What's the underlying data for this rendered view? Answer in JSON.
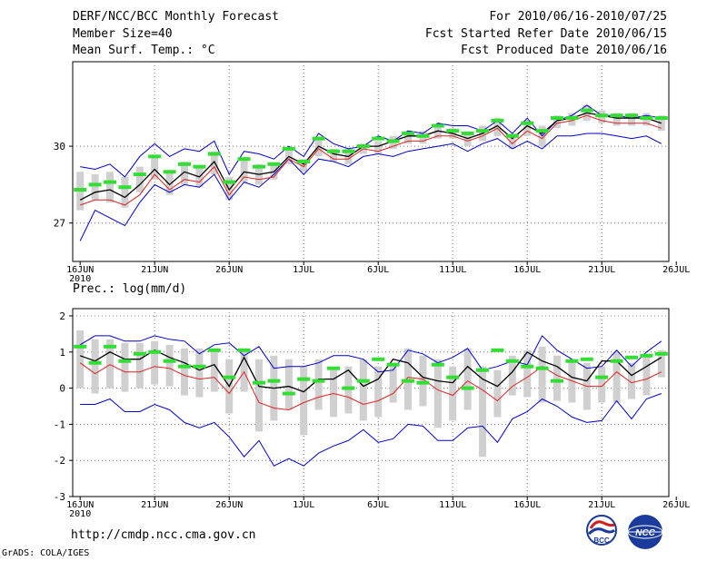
{
  "header": {
    "title": "DERF/NCC/BCC Monthly Forecast",
    "member_size": "Member Size=40",
    "variable": "Mean Surf. Temp.: °C",
    "period": "For 2010/06/16-2010/07/25",
    "refer_date": "Fcst Started Refer Date 2010/06/15",
    "produced_date": "Fcst Produced Date 2010/06/16"
  },
  "footer": {
    "url": "http://cmdp.ncc.cma.gov.cn",
    "grads": "GrADS: COLA/IGES",
    "logo_left": "BCC",
    "logo_right": "NCC"
  },
  "colors": {
    "box": "#d0d0d0",
    "hit": "#33dd33",
    "max": "#0000cc",
    "min": "#0000cc",
    "mean": "#dd2222",
    "median": "#000000"
  },
  "chart_data": [
    {
      "type": "line",
      "title": "Mean Surf. Temp.: °C",
      "x_ticks": [
        "16JUN",
        "21JUN",
        "26JUN",
        "1JUL",
        "6JUL",
        "11JUL",
        "16JUL",
        "21JUL",
        "26JUL"
      ],
      "x_year": "2010",
      "y_ticks": [
        27,
        30
      ],
      "ylim": [
        25.5,
        33.3
      ],
      "series": [
        {
          "name": "max",
          "values": [
            29.2,
            29.1,
            29.3,
            28.8,
            29.6,
            30.1,
            29.6,
            29.9,
            29.8,
            30.2,
            28.9,
            29.8,
            29.7,
            29.5,
            30.0,
            29.6,
            30.5,
            30.1,
            29.9,
            30.0,
            30.4,
            30.2,
            30.6,
            30.5,
            30.9,
            30.8,
            30.8,
            30.6,
            31.0,
            30.5,
            31.1,
            30.4,
            31.0,
            31.2,
            31.6,
            31.2,
            31.2,
            31.1,
            31.2,
            31.1
          ]
        },
        {
          "name": "min",
          "values": [
            26.3,
            27.5,
            27.2,
            26.9,
            27.8,
            28.5,
            28.2,
            28.5,
            28.4,
            28.9,
            27.9,
            28.6,
            28.4,
            28.9,
            29.5,
            28.9,
            29.5,
            29.4,
            29.2,
            29.6,
            29.7,
            29.6,
            29.8,
            29.9,
            30.0,
            30.1,
            29.8,
            30.1,
            30.3,
            29.9,
            30.2,
            29.9,
            30.4,
            30.4,
            30.5,
            30.5,
            30.4,
            30.3,
            30.4,
            30.1
          ]
        },
        {
          "name": "mean",
          "values": [
            27.7,
            27.9,
            27.9,
            27.7,
            28.1,
            28.9,
            28.3,
            28.7,
            28.6,
            29.2,
            28.1,
            28.8,
            28.7,
            28.8,
            29.5,
            29.2,
            29.9,
            29.5,
            29.5,
            29.9,
            29.8,
            30.0,
            30.2,
            30.2,
            30.4,
            30.4,
            30.2,
            30.4,
            30.7,
            30.1,
            30.6,
            30.3,
            30.9,
            31.0,
            31.2,
            31.0,
            30.9,
            30.9,
            30.9,
            30.7
          ]
        },
        {
          "name": "median",
          "values": [
            27.9,
            28.2,
            28.3,
            28.0,
            28.5,
            29.1,
            28.5,
            29.0,
            28.8,
            29.4,
            28.3,
            29.0,
            28.9,
            29.0,
            29.6,
            29.3,
            30.0,
            29.7,
            29.6,
            30.0,
            30.0,
            30.2,
            30.4,
            30.4,
            30.6,
            30.5,
            30.3,
            30.5,
            30.8,
            30.3,
            30.8,
            30.5,
            31.0,
            31.1,
            31.3,
            31.2,
            31.1,
            31.1,
            31.1,
            30.9
          ]
        },
        {
          "name": "box_high",
          "values": [
            29.0,
            28.9,
            29.0,
            28.8,
            29.2,
            29.6,
            29.0,
            29.4,
            29.2,
            29.8,
            28.8,
            29.5,
            29.3,
            29.3,
            29.9,
            29.5,
            30.3,
            29.9,
            29.9,
            30.1,
            30.2,
            30.4,
            30.6,
            30.6,
            30.8,
            30.7,
            30.5,
            30.8,
            31.1,
            30.5,
            31.0,
            30.8,
            31.2,
            31.3,
            31.6,
            31.4,
            31.3,
            31.3,
            31.3,
            31.2
          ]
        },
        {
          "name": "box_low",
          "values": [
            27.5,
            27.9,
            27.8,
            27.6,
            28.2,
            28.7,
            28.1,
            28.5,
            28.4,
            28.9,
            27.9,
            28.6,
            28.5,
            28.7,
            29.3,
            29.0,
            29.6,
            29.4,
            29.3,
            29.7,
            29.7,
            29.9,
            30.1,
            30.1,
            30.3,
            30.3,
            30.0,
            30.2,
            30.4,
            29.9,
            30.4,
            30.0,
            30.7,
            30.8,
            31.0,
            30.9,
            30.8,
            30.8,
            30.8,
            30.6
          ]
        },
        {
          "name": "hits",
          "values": [
            28.3,
            28.5,
            28.6,
            28.4,
            28.9,
            29.6,
            29.0,
            29.3,
            29.2,
            29.7,
            28.6,
            29.5,
            29.2,
            29.3,
            29.9,
            29.4,
            30.3,
            29.8,
            29.8,
            30.0,
            30.3,
            30.2,
            30.5,
            30.4,
            30.8,
            30.6,
            30.5,
            30.6,
            31.0,
            30.4,
            30.9,
            30.6,
            31.1,
            31.1,
            31.4,
            31.2,
            31.2,
            31.2,
            31.1,
            31.1
          ]
        }
      ]
    },
    {
      "type": "line",
      "title": "Prec.: log(mm/d)",
      "x_ticks": [
        "16JUN",
        "21JUN",
        "26JUN",
        "1JUL",
        "6JUL",
        "11JUL",
        "16JUL",
        "21JUL",
        "26JUL"
      ],
      "x_year": "2010",
      "y_ticks": [
        -3,
        -2,
        -1,
        0,
        1,
        2
      ],
      "ylim": [
        -3.0,
        2.2
      ],
      "series": [
        {
          "name": "max",
          "values": [
            1.2,
            1.45,
            1.45,
            1.3,
            1.3,
            1.45,
            1.35,
            1.3,
            0.95,
            1.2,
            1.25,
            0.9,
            1.15,
            0.55,
            0.6,
            0.6,
            0.7,
            0.9,
            0.9,
            0.8,
            0.45,
            0.5,
            1.05,
            0.95,
            0.7,
            0.85,
            1.1,
            0.5,
            0.6,
            0.75,
            0.65,
            1.45,
            1.05,
            0.8,
            0.55,
            0.6,
            1.05,
            0.6,
            1.0,
            1.3
          ]
        },
        {
          "name": "min",
          "values": [
            -0.45,
            -0.45,
            -0.3,
            -0.65,
            -0.65,
            -0.45,
            -0.6,
            -0.95,
            -1.1,
            -0.95,
            -1.35,
            -1.9,
            -1.45,
            -2.15,
            -1.95,
            -2.15,
            -1.8,
            -1.6,
            -1.45,
            -1.15,
            -1.5,
            -1.4,
            -1.0,
            -1.05,
            -1.45,
            -1.45,
            -1.1,
            -1.05,
            -1.5,
            -0.85,
            -0.65,
            -0.3,
            -0.5,
            -0.8,
            -0.95,
            -0.9,
            -0.35,
            -0.85,
            -0.3,
            -0.15
          ]
        },
        {
          "name": "mean",
          "values": [
            0.7,
            0.4,
            0.65,
            0.45,
            0.45,
            0.6,
            0.55,
            0.35,
            0.25,
            0.3,
            -0.15,
            0.45,
            -0.4,
            -0.55,
            -0.6,
            -0.4,
            -0.25,
            -0.15,
            -0.25,
            -0.45,
            -0.35,
            -0.15,
            0.3,
            0.25,
            -0.05,
            -0.2,
            0.2,
            -0.05,
            -0.35,
            0.05,
            0.3,
            0.6,
            0.35,
            0.2,
            0.05,
            0.05,
            0.45,
            0.15,
            0.25,
            0.45
          ]
        },
        {
          "name": "median",
          "values": [
            0.9,
            0.75,
            1.0,
            0.8,
            0.8,
            1.05,
            0.85,
            0.7,
            0.5,
            0.65,
            0.05,
            0.85,
            0.05,
            0.0,
            0.05,
            -0.1,
            0.25,
            0.25,
            0.5,
            0.05,
            0.25,
            0.8,
            0.7,
            0.3,
            0.2,
            0.15,
            0.6,
            0.25,
            0.05,
            0.45,
            1.0,
            0.75,
            0.6,
            0.3,
            0.2,
            0.75,
            0.75,
            0.35,
            0.6,
            0.85
          ]
        },
        {
          "name": "box_high",
          "values": [
            1.6,
            1.35,
            1.35,
            1.25,
            1.25,
            1.3,
            1.2,
            1.1,
            1.1,
            1.1,
            0.8,
            1.1,
            0.8,
            0.9,
            0.8,
            0.6,
            0.8,
            0.5,
            0.6,
            0.8,
            0.6,
            0.7,
            1.1,
            0.9,
            0.8,
            0.6,
            1.1,
            0.6,
            0.5,
            0.9,
            1.05,
            1.15,
            0.9,
            0.8,
            0.7,
            0.6,
            1.0,
            0.7,
            0.9,
            1.05
          ]
        },
        {
          "name": "box_low",
          "values": [
            0.0,
            -0.15,
            0.0,
            -0.1,
            0.0,
            0.1,
            0.05,
            -0.2,
            -0.25,
            -0.1,
            -0.7,
            -0.1,
            -1.2,
            -0.9,
            -0.6,
            -1.3,
            -0.6,
            -0.8,
            -0.7,
            -0.9,
            -0.8,
            -0.4,
            -0.6,
            -0.5,
            -1.1,
            -0.9,
            -0.6,
            -1.9,
            -0.8,
            -0.2,
            -0.25,
            -0.4,
            -0.35,
            -0.4,
            -0.6,
            -0.4,
            -0.4,
            -0.3,
            -0.2,
            0.3
          ]
        },
        {
          "name": "hits",
          "values": [
            1.15,
            0.7,
            1.15,
            0.75,
            0.95,
            1.0,
            0.75,
            0.6,
            0.6,
            1.05,
            0.3,
            1.05,
            0.15,
            0.2,
            -0.15,
            0.25,
            0.2,
            0.55,
            0.0,
            0.2,
            0.8,
            0.65,
            0.2,
            0.15,
            0.65,
            0.3,
            0.0,
            0.5,
            1.05,
            0.75,
            0.6,
            0.55,
            0.2,
            0.75,
            0.8,
            0.3,
            0.75,
            0.85,
            0.9,
            0.95
          ]
        }
      ]
    }
  ]
}
